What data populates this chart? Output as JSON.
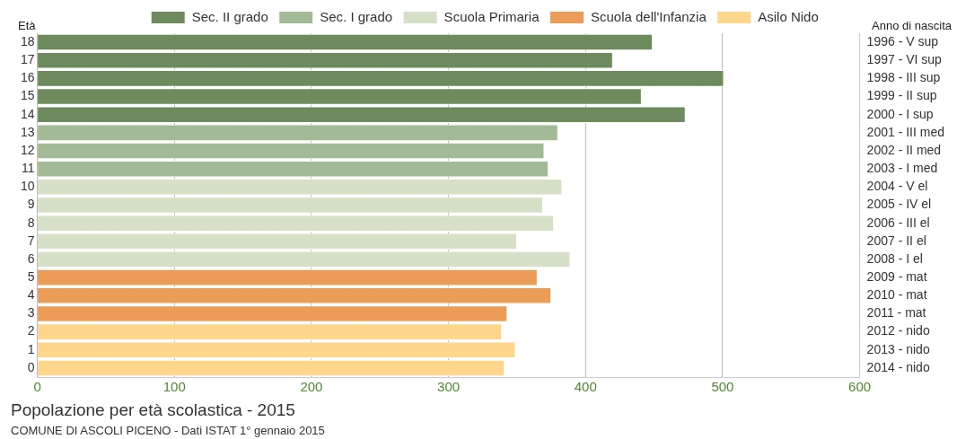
{
  "chart_data": {
    "type": "bar",
    "orientation": "horizontal",
    "stacked": true,
    "title": "Popolazione per età scolastica - 2015",
    "ylabel": "Età",
    "y2label": "Anno di nascita",
    "categories": [
      "18",
      "17",
      "16",
      "15",
      "14",
      "13",
      "12",
      "11",
      "10",
      "9",
      "8",
      "7",
      "6",
      "5",
      "4",
      "3",
      "2",
      "1",
      "0"
    ],
    "y2_categories": [
      "1996 - V sup",
      "1997 - VI sup",
      "1998 - III sup",
      "1999 - II sup",
      "2000 - I sup",
      "2001 - III med",
      "2002 - II med",
      "2003 - I med",
      "2004 - V el",
      "2005 - IV el",
      "2006 - III el",
      "2007 - II el",
      "2008 - I el",
      "2009 - mat",
      "2010 - mat",
      "2011 - mat",
      "2012 - nido",
      "2013 - nido",
      "2014 - nido"
    ],
    "series": [
      {
        "name": "Sec. II grado",
        "color": "#6e8b5e",
        "values": [
          449,
          420,
          501,
          441,
          473,
          null,
          null,
          null,
          null,
          null,
          null,
          null,
          null,
          null,
          null,
          null,
          null,
          null,
          null
        ]
      },
      {
        "name": "Sec. I grado",
        "color": "#a2bb96",
        "values": [
          null,
          null,
          null,
          null,
          null,
          380,
          370,
          373,
          null,
          null,
          null,
          null,
          null,
          null,
          null,
          null,
          null,
          null,
          null
        ]
      },
      {
        "name": "Scuola Primaria",
        "color": "#d5e0c6",
        "values": [
          null,
          null,
          null,
          null,
          null,
          null,
          null,
          null,
          383,
          369,
          377,
          350,
          389,
          null,
          null,
          null,
          null,
          null,
          null
        ]
      },
      {
        "name": "Scuola dell'Infanzia",
        "color": "#eb9c57",
        "values": [
          null,
          null,
          null,
          null,
          null,
          null,
          null,
          null,
          null,
          null,
          null,
          null,
          null,
          365,
          375,
          343,
          null,
          null,
          null
        ]
      },
      {
        "name": "Asilo Nido",
        "color": "#fed68c",
        "values": [
          null,
          null,
          null,
          null,
          null,
          null,
          null,
          null,
          null,
          null,
          null,
          null,
          null,
          null,
          null,
          null,
          339,
          349,
          341
        ]
      }
    ],
    "xlim": [
      0,
      600
    ],
    "xticks": [
      0,
      100,
      200,
      300,
      400,
      500,
      600
    ],
    "grid": "x",
    "legend": "top",
    "annotations": [
      "COMUNE DI ASCOLI PICENO - Dati ISTAT 1° gennaio 2015"
    ]
  }
}
